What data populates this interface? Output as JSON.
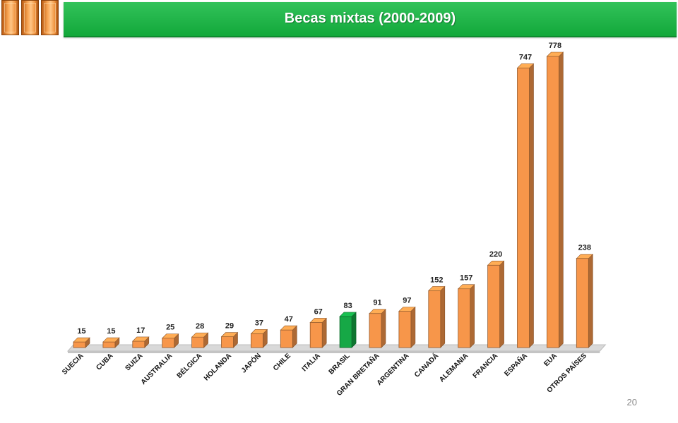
{
  "header": {
    "title": "Becas mixtas (2000-2009)"
  },
  "footer": {
    "page_number": "20"
  },
  "colors": {
    "bar": "#f7964a",
    "bar_highlight": "#16a846",
    "header": "#1fb64a"
  },
  "chart_data": {
    "type": "bar",
    "title": "Becas mixtas (2000-2009)",
    "xlabel": "",
    "ylabel": "",
    "ylim": [
      0,
      800
    ],
    "grid": false,
    "legend": "none",
    "highlight": "BRASIL",
    "categories": [
      "SUECIA",
      "CUBA",
      "SUIZA",
      "AUSTRALIA",
      "BÉLGICA",
      "HOLANDA",
      "JAPÓN",
      "CHILE",
      "ITALIA",
      "BRASIL",
      "GRAN BRETAÑA",
      "ARGENTINA",
      "CANADÁ",
      "ALEMANIA",
      "FRANCIA",
      "ESPAÑA",
      "EUA",
      "OTROS PAÍSES"
    ],
    "values": [
      15,
      15,
      17,
      25,
      28,
      29,
      37,
      47,
      67,
      83,
      91,
      97,
      152,
      157,
      220,
      747,
      778,
      238
    ]
  }
}
